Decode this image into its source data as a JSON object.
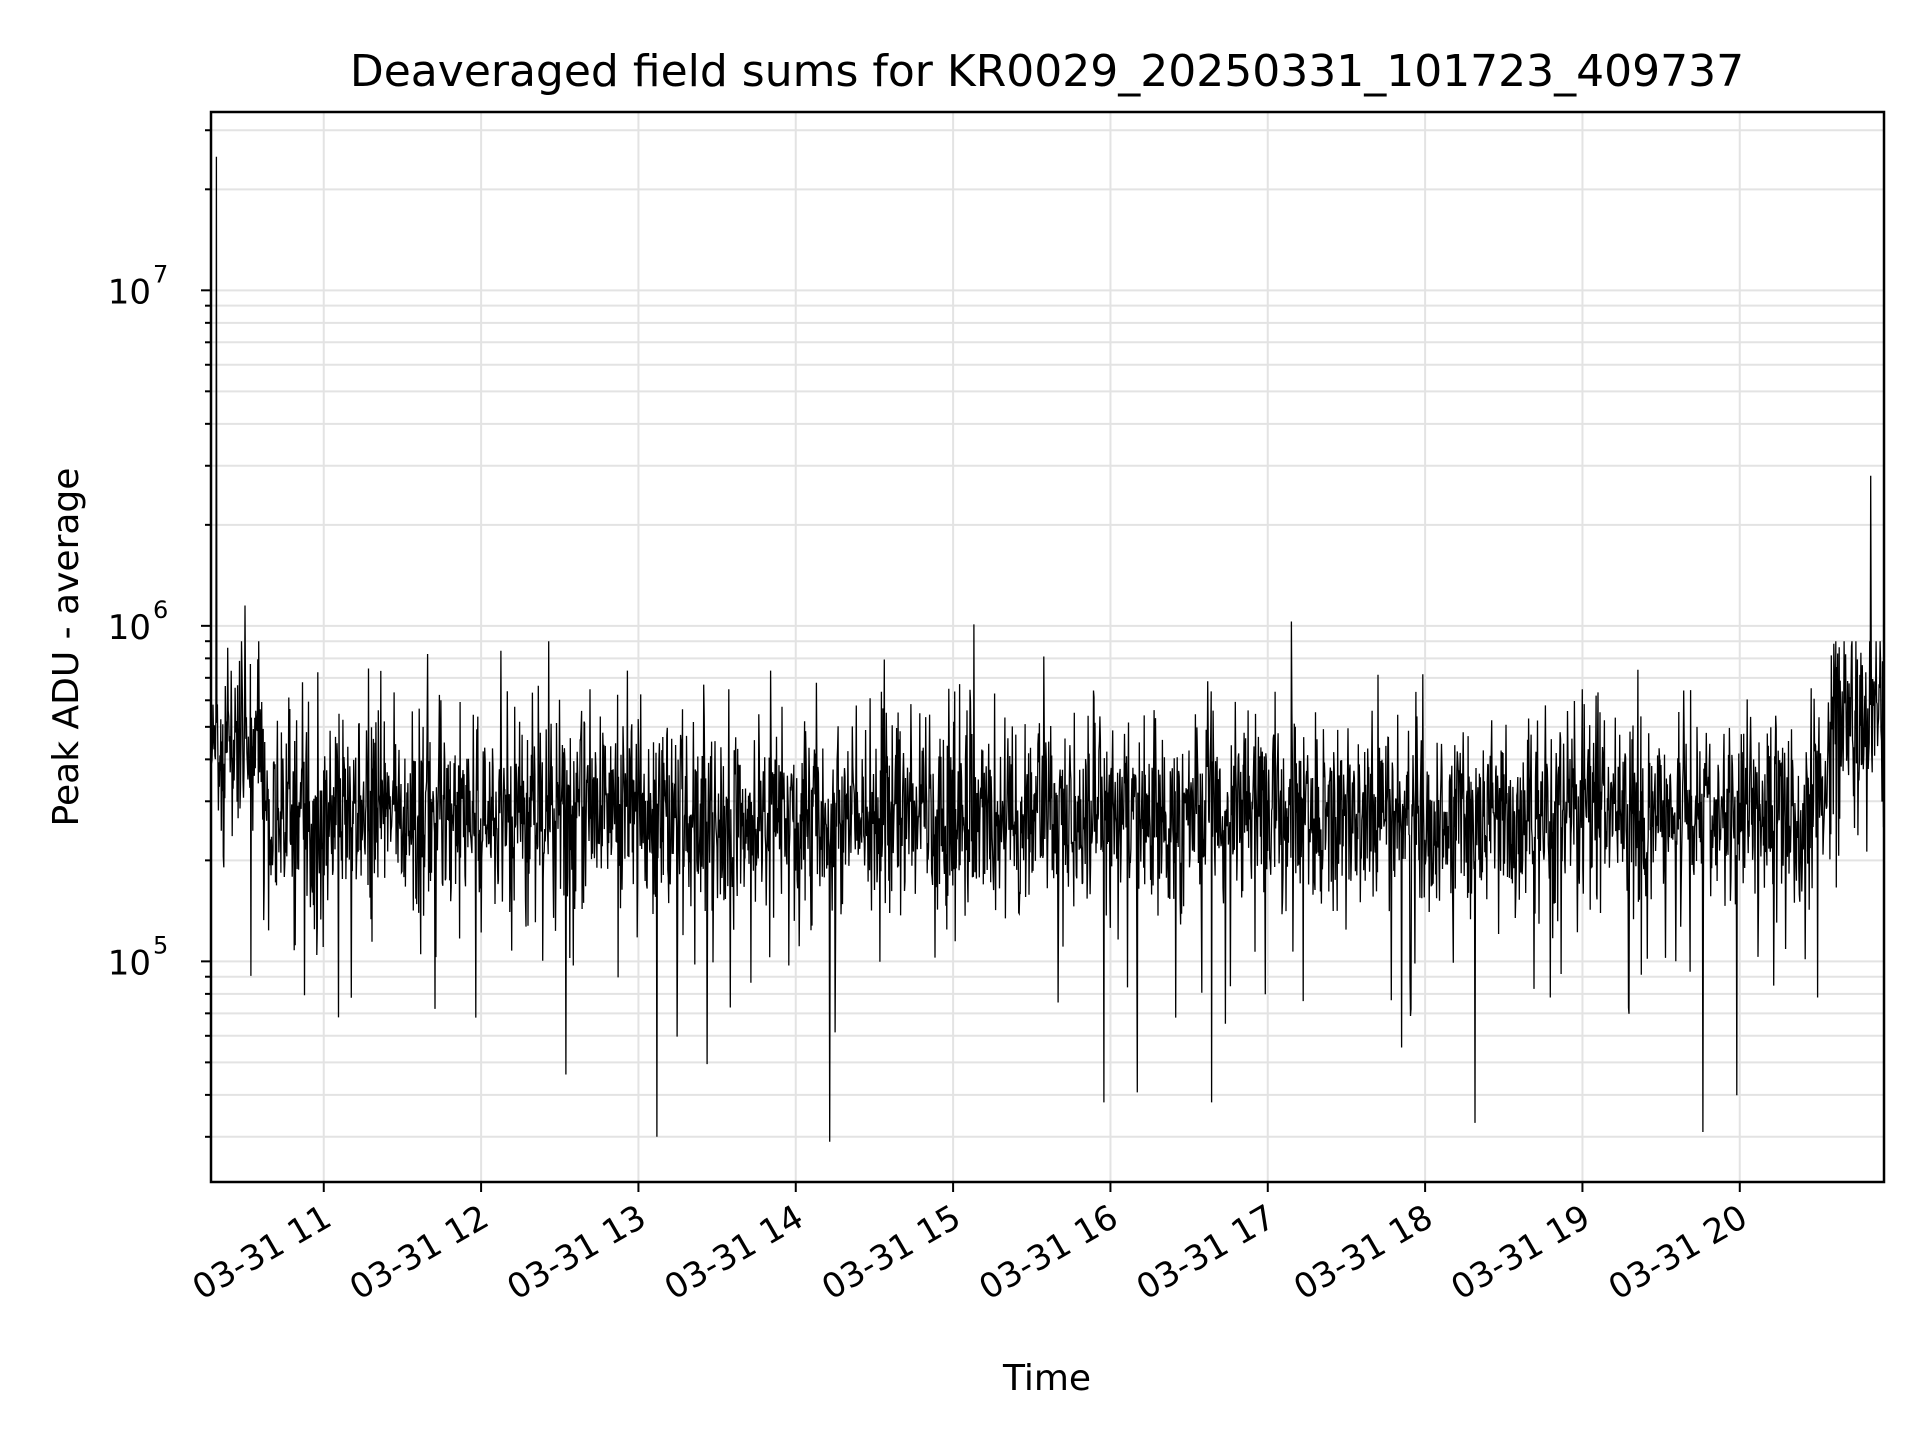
{
  "chart_data": {
    "type": "line",
    "title": "Deaveraged field sums for KR0029_20250331_101723_409737",
    "xlabel": "Time",
    "ylabel": "Peak ADU - average",
    "x_start": "03-31 10:17",
    "x_end": "03-31 20:55",
    "x_ticks": [
      "03-31 11",
      "03-31 12",
      "03-31 13",
      "03-31 14",
      "03-31 15",
      "03-31 16",
      "03-31 17",
      "03-31 18",
      "03-31 19",
      "03-31 20"
    ],
    "y_scale": "log",
    "ylim": [
      22000,
      34000000
    ],
    "y_ticks": [
      {
        "base": "10",
        "exp": "5",
        "value": 100000
      },
      {
        "base": "10",
        "exp": "6",
        "value": 1000000
      },
      {
        "base": "10",
        "exp": "7",
        "value": 10000000
      }
    ],
    "grid": true,
    "line_color": "#000000",
    "series": [
      {
        "baseline_segments": [
          {
            "from_hour": 10.29,
            "to_hour": 10.63,
            "median": 450000
          },
          {
            "from_hour": 10.63,
            "to_hour": 20.42,
            "median": 270000
          },
          {
            "from_hour": 20.42,
            "to_hour": 20.58,
            "median": 340000
          },
          {
            "from_hour": 20.58,
            "to_hour": 20.92,
            "median": 500000
          }
        ],
        "notable_points": [
          {
            "time": "03-31 10:19",
            "value": 25000000
          },
          {
            "time": "03-31 10:30",
            "value": 1150000
          },
          {
            "time": "03-31 15:08",
            "value": 1010000
          },
          {
            "time": "03-31 17:09",
            "value": 1030000
          },
          {
            "time": "03-31 20:50",
            "value": 2800000
          },
          {
            "time": "03-31 13:07",
            "value": 30000
          },
          {
            "time": "03-31 14:13",
            "value": 29000
          },
          {
            "time": "03-31 19:46",
            "value": 31000
          },
          {
            "time": "03-31 18:19",
            "value": 33000
          }
        ]
      }
    ]
  }
}
